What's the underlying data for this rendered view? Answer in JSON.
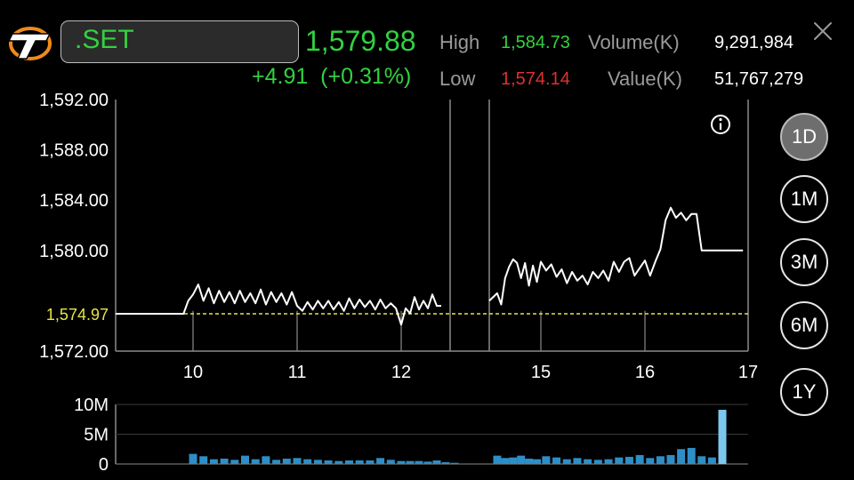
{
  "header": {
    "symbol": ".SET",
    "last_price": "1,579.88",
    "change": "+4.91",
    "change_pct": "(+0.31%)",
    "high_label": "High",
    "high_value": "1,584.73",
    "low_label": "Low",
    "low_value": "1,574.14",
    "volume_label": "Volume(K)",
    "volume_value": "9,291,984",
    "value_label": "Value(K)",
    "value_value": "51,767,279"
  },
  "icons": {
    "logo": "brand-logo",
    "close": "close-icon",
    "info": "info-icon"
  },
  "colors": {
    "up": "#33d13f",
    "down": "#e03030",
    "reference_line": "#e8e34a",
    "volume_bar": "#2e8ec7",
    "volume_bar_highlight": "#7cc7ee"
  },
  "timeframes": [
    {
      "label": "1D",
      "active": true
    },
    {
      "label": "1M",
      "active": false
    },
    {
      "label": "3M",
      "active": false
    },
    {
      "label": "6M",
      "active": false
    },
    {
      "label": "1Y",
      "active": false
    }
  ],
  "chart_data": {
    "type": "line",
    "title": "",
    "xlabel": "",
    "ylabel": "",
    "x_ticks": [
      "10",
      "11",
      "12",
      "15",
      "16",
      "17"
    ],
    "y_ticks": [
      "1,592.00",
      "1,588.00",
      "1,584.00",
      "1,580.00",
      "1,572.00"
    ],
    "ylim": [
      1572,
      1592
    ],
    "reference_label": "1,574.97",
    "reference_value": 1574.97,
    "grid": "vertical lines at day ticks",
    "segments": [
      {
        "name": "",
        "points": [
          [
            9.35,
            1574.97
          ],
          [
            9.6,
            1574.97
          ],
          [
            9.85,
            1574.97
          ],
          [
            9.92,
            1574.97
          ],
          [
            9.96,
            1576.0
          ],
          [
            10.0,
            1576.5
          ],
          [
            10.05,
            1577.3
          ],
          [
            10.1,
            1576.0
          ],
          [
            10.15,
            1577.0
          ],
          [
            10.2,
            1575.8
          ],
          [
            10.25,
            1576.8
          ],
          [
            10.3,
            1575.9
          ],
          [
            10.35,
            1576.7
          ],
          [
            10.4,
            1575.8
          ],
          [
            10.45,
            1576.8
          ],
          [
            10.5,
            1575.9
          ],
          [
            10.55,
            1576.6
          ],
          [
            10.6,
            1575.8
          ],
          [
            10.65,
            1576.9
          ],
          [
            10.7,
            1575.7
          ],
          [
            10.75,
            1576.7
          ],
          [
            10.8,
            1575.9
          ],
          [
            10.85,
            1576.6
          ],
          [
            10.9,
            1575.7
          ],
          [
            10.95,
            1576.7
          ],
          [
            11.0,
            1575.6
          ],
          [
            11.05,
            1575.2
          ],
          [
            11.1,
            1575.9
          ],
          [
            11.15,
            1575.3
          ],
          [
            11.2,
            1576.0
          ],
          [
            11.25,
            1575.4
          ],
          [
            11.3,
            1576.0
          ],
          [
            11.35,
            1575.3
          ],
          [
            11.4,
            1575.9
          ],
          [
            11.45,
            1575.2
          ],
          [
            11.5,
            1576.2
          ],
          [
            11.55,
            1575.4
          ],
          [
            11.6,
            1576.1
          ],
          [
            11.65,
            1575.5
          ],
          [
            11.7,
            1576.0
          ],
          [
            11.75,
            1575.3
          ],
          [
            11.8,
            1576.1
          ],
          [
            11.85,
            1575.4
          ],
          [
            11.9,
            1575.8
          ],
          [
            11.95,
            1575.4
          ],
          [
            12.0,
            1574.1
          ],
          [
            12.05,
            1575.4
          ],
          [
            12.1,
            1575.0
          ],
          [
            12.15,
            1576.3
          ],
          [
            12.2,
            1575.3
          ],
          [
            12.25,
            1576.0
          ],
          [
            12.3,
            1575.4
          ],
          [
            12.35,
            1576.5
          ],
          [
            12.4,
            1575.6
          ],
          [
            12.45,
            1575.6
          ]
        ]
      },
      {
        "name": "",
        "points": [
          [
            14.35,
            1576.0
          ],
          [
            14.45,
            1576.6
          ],
          [
            14.5,
            1575.7
          ],
          [
            14.55,
            1577.8
          ],
          [
            14.6,
            1578.7
          ],
          [
            14.65,
            1579.3
          ],
          [
            14.7,
            1579.0
          ],
          [
            14.75,
            1577.8
          ],
          [
            14.8,
            1579.0
          ],
          [
            14.85,
            1577.2
          ],
          [
            14.9,
            1578.8
          ],
          [
            14.95,
            1577.5
          ],
          [
            15.0,
            1579.1
          ],
          [
            15.05,
            1578.4
          ],
          [
            15.1,
            1578.9
          ],
          [
            15.15,
            1577.9
          ],
          [
            15.2,
            1578.5
          ],
          [
            15.25,
            1577.4
          ],
          [
            15.3,
            1578.3
          ],
          [
            15.35,
            1577.6
          ],
          [
            15.4,
            1578.0
          ],
          [
            15.45,
            1577.3
          ],
          [
            15.5,
            1578.3
          ],
          [
            15.55,
            1577.8
          ],
          [
            15.6,
            1578.4
          ],
          [
            15.65,
            1577.6
          ],
          [
            15.7,
            1579.1
          ],
          [
            15.75,
            1578.3
          ],
          [
            15.8,
            1579.1
          ],
          [
            15.85,
            1579.4
          ],
          [
            15.9,
            1578.0
          ],
          [
            15.95,
            1578.6
          ],
          [
            16.0,
            1579.2
          ],
          [
            16.05,
            1578.0
          ],
          [
            16.1,
            1579.1
          ],
          [
            16.15,
            1580.1
          ],
          [
            16.2,
            1582.4
          ],
          [
            16.25,
            1583.4
          ],
          [
            16.3,
            1582.6
          ],
          [
            16.35,
            1583.0
          ],
          [
            16.4,
            1582.4
          ],
          [
            16.45,
            1582.9
          ],
          [
            16.5,
            1582.9
          ],
          [
            16.55,
            1580.0
          ],
          [
            16.75,
            1580.0
          ],
          [
            16.95,
            1580.0
          ]
        ]
      }
    ],
    "volume": {
      "y_ticks": [
        "10M",
        "5M",
        "0"
      ],
      "ylim": [
        0,
        10
      ],
      "unit": "M",
      "bars": [
        [
          10.0,
          1.7
        ],
        [
          10.1,
          1.3
        ],
        [
          10.2,
          0.8
        ],
        [
          10.3,
          0.9
        ],
        [
          10.4,
          0.7
        ],
        [
          10.5,
          1.4
        ],
        [
          10.6,
          0.8
        ],
        [
          10.7,
          1.3
        ],
        [
          10.8,
          0.7
        ],
        [
          10.9,
          0.9
        ],
        [
          11.0,
          1.0
        ],
        [
          11.1,
          0.8
        ],
        [
          11.2,
          0.7
        ],
        [
          11.3,
          0.6
        ],
        [
          11.4,
          0.5
        ],
        [
          11.5,
          0.6
        ],
        [
          11.6,
          0.6
        ],
        [
          11.7,
          0.6
        ],
        [
          11.8,
          1.0
        ],
        [
          11.9,
          0.7
        ],
        [
          12.0,
          0.5
        ],
        [
          12.1,
          0.5
        ],
        [
          12.2,
          0.5
        ],
        [
          12.3,
          0.4
        ],
        [
          12.4,
          0.6
        ],
        [
          12.5,
          0.3
        ],
        [
          12.6,
          0.2
        ],
        [
          14.45,
          1.4
        ],
        [
          14.55,
          1.0
        ],
        [
          14.65,
          1.1
        ],
        [
          14.75,
          1.4
        ],
        [
          14.85,
          0.9
        ],
        [
          14.95,
          0.8
        ],
        [
          15.05,
          1.3
        ],
        [
          15.15,
          1.1
        ],
        [
          15.25,
          0.8
        ],
        [
          15.35,
          1.0
        ],
        [
          15.45,
          0.8
        ],
        [
          15.55,
          0.7
        ],
        [
          15.65,
          0.8
        ],
        [
          15.75,
          1.1
        ],
        [
          15.85,
          1.2
        ],
        [
          15.95,
          1.5
        ],
        [
          16.05,
          1.0
        ],
        [
          16.15,
          1.3
        ],
        [
          16.25,
          1.5
        ],
        [
          16.35,
          2.5
        ],
        [
          16.45,
          2.7
        ],
        [
          16.55,
          1.3
        ],
        [
          16.65,
          1.1
        ],
        [
          16.75,
          9.1
        ]
      ]
    }
  }
}
